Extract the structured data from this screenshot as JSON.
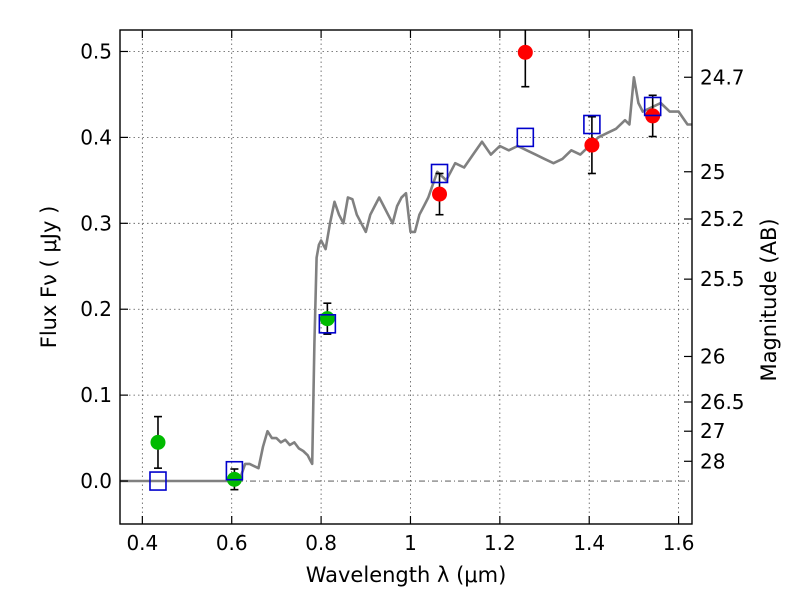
{
  "chart_data": {
    "type": "scatter",
    "xlabel": "Wavelength  λ (μm)",
    "ylabel": "Flux  Fν  ( μJy )",
    "y2label": "Magnitude (AB)",
    "xlim": [
      0.35,
      1.63
    ],
    "ylim": [
      -0.05,
      0.525
    ],
    "grid": true,
    "xticks": [
      {
        "value": 0.4,
        "label": "0.4"
      },
      {
        "value": 0.6,
        "label": "0.6"
      },
      {
        "value": 0.8,
        "label": "0.8"
      },
      {
        "value": 1.0,
        "label": "1"
      },
      {
        "value": 1.2,
        "label": "1.2"
      },
      {
        "value": 1.4,
        "label": "1.4"
      },
      {
        "value": 1.6,
        "label": "1.6"
      }
    ],
    "yticks": [
      {
        "value": 0.0,
        "label": "0.0"
      },
      {
        "value": 0.1,
        "label": "0.1"
      },
      {
        "value": 0.2,
        "label": "0.2"
      },
      {
        "value": 0.3,
        "label": "0.3"
      },
      {
        "value": 0.4,
        "label": "0.4"
      },
      {
        "value": 0.5,
        "label": "0.5"
      }
    ],
    "mag_ticks": [
      {
        "flux": 0.47,
        "label": "24.7"
      },
      {
        "flux": 0.36,
        "label": "25"
      },
      {
        "flux": 0.305,
        "label": "25.2"
      },
      {
        "flux": 0.235,
        "label": "25.5"
      },
      {
        "flux": 0.145,
        "label": "26"
      },
      {
        "flux": 0.092,
        "label": "26.5"
      },
      {
        "flux": 0.058,
        "label": "27"
      },
      {
        "flux": 0.023,
        "label": "28"
      }
    ],
    "model_spectrum": {
      "color": "#808080",
      "x": [
        0.35,
        0.45,
        0.55,
        0.6,
        0.62,
        0.63,
        0.64,
        0.66,
        0.67,
        0.68,
        0.69,
        0.7,
        0.71,
        0.72,
        0.73,
        0.74,
        0.75,
        0.76,
        0.77,
        0.775,
        0.78,
        0.785,
        0.79,
        0.795,
        0.8,
        0.81,
        0.82,
        0.83,
        0.84,
        0.85,
        0.86,
        0.87,
        0.88,
        0.89,
        0.9,
        0.91,
        0.92,
        0.93,
        0.94,
        0.95,
        0.96,
        0.97,
        0.98,
        0.99,
        1.0,
        1.01,
        1.02,
        1.03,
        1.04,
        1.05,
        1.06,
        1.07,
        1.08,
        1.09,
        1.1,
        1.12,
        1.14,
        1.16,
        1.18,
        1.2,
        1.22,
        1.24,
        1.26,
        1.28,
        1.3,
        1.32,
        1.34,
        1.36,
        1.38,
        1.4,
        1.42,
        1.44,
        1.46,
        1.48,
        1.49,
        1.5,
        1.51,
        1.52,
        1.54,
        1.56,
        1.58,
        1.6,
        1.62,
        1.63
      ],
      "y": [
        0.0,
        0.0,
        0.0,
        0.0,
        0.005,
        0.02,
        0.02,
        0.015,
        0.04,
        0.058,
        0.05,
        0.05,
        0.045,
        0.048,
        0.042,
        0.045,
        0.038,
        0.035,
        0.03,
        0.025,
        0.02,
        0.16,
        0.26,
        0.275,
        0.28,
        0.27,
        0.3,
        0.325,
        0.31,
        0.3,
        0.33,
        0.328,
        0.31,
        0.3,
        0.29,
        0.31,
        0.32,
        0.33,
        0.32,
        0.31,
        0.3,
        0.32,
        0.33,
        0.335,
        0.29,
        0.29,
        0.31,
        0.32,
        0.33,
        0.345,
        0.36,
        0.355,
        0.35,
        0.36,
        0.37,
        0.365,
        0.38,
        0.395,
        0.38,
        0.39,
        0.385,
        0.39,
        0.385,
        0.38,
        0.375,
        0.37,
        0.375,
        0.385,
        0.38,
        0.39,
        0.4,
        0.405,
        0.41,
        0.42,
        0.415,
        0.47,
        0.44,
        0.43,
        0.435,
        0.44,
        0.43,
        0.43,
        0.415,
        0.415
      ]
    },
    "series": [
      {
        "marker": "circle",
        "color": "#00bb00",
        "points": [
          {
            "x": 0.435,
            "y": 0.045,
            "err": 0.03
          },
          {
            "x": 0.606,
            "y": 0.002,
            "err": 0.012
          },
          {
            "x": 0.814,
            "y": 0.189,
            "err": 0.018
          }
        ]
      },
      {
        "marker": "circle",
        "color": "#ff0000",
        "points": [
          {
            "x": 1.065,
            "y": 0.334,
            "err": 0.024
          },
          {
            "x": 1.257,
            "y": 0.499,
            "err": 0.04
          },
          {
            "x": 1.406,
            "y": 0.391,
            "err": 0.033
          },
          {
            "x": 1.542,
            "y": 0.425,
            "err": 0.024
          }
        ]
      },
      {
        "marker": "open-square",
        "color": "#0000cc",
        "points": [
          {
            "x": 0.435,
            "y": 0.0
          },
          {
            "x": 0.606,
            "y": 0.012
          },
          {
            "x": 0.814,
            "y": 0.183
          },
          {
            "x": 1.065,
            "y": 0.358
          },
          {
            "x": 1.257,
            "y": 0.4
          },
          {
            "x": 1.406,
            "y": 0.415
          },
          {
            "x": 1.542,
            "y": 0.436
          }
        ]
      }
    ]
  }
}
